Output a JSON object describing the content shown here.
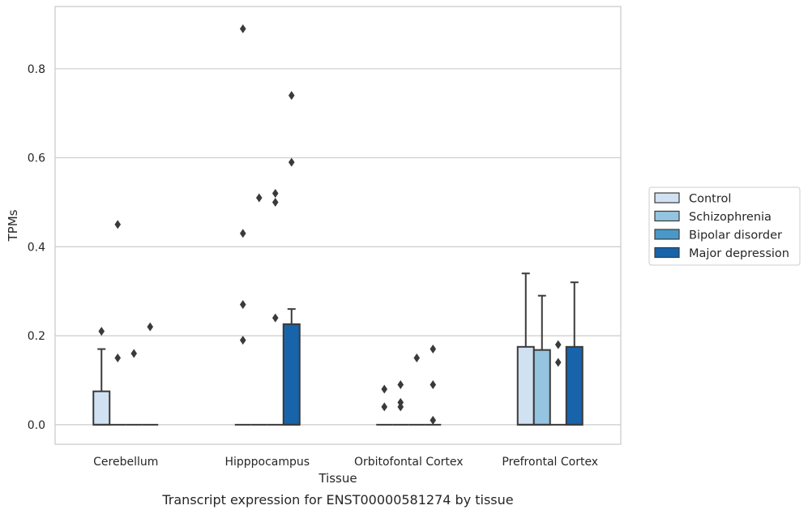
{
  "caption": "Transcript expression for ENST00000581274 by tissue",
  "chart_data": {
    "type": "box",
    "xlabel": "Tissue",
    "ylabel": "TPMs",
    "ylim": [
      -0.044,
      0.94
    ],
    "yticks": [
      0.0,
      0.2,
      0.4,
      0.6,
      0.8
    ],
    "ytick_labels": [
      "0.0",
      "0.2",
      "0.4",
      "0.6",
      "0.8"
    ],
    "grid": "horizontal",
    "legend_position": "right",
    "categories": [
      "Cerebellum",
      "Hipppocampus",
      "Orbitofontal Cortex",
      "Prefrontal Cortex"
    ],
    "series": [
      {
        "name": "Control",
        "color": "#d0e1f2",
        "boxes": [
          {
            "q1": 0.0,
            "median": 0.0,
            "q3": 0.075,
            "whisker_low": 0.0,
            "whisker_high": 0.17,
            "outliers": [
              0.21
            ]
          },
          {
            "q1": 0.0,
            "median": 0.0,
            "q3": 0.0,
            "whisker_low": 0.0,
            "whisker_high": 0.0,
            "outliers": [
              0.89,
              0.43,
              0.27,
              0.19
            ]
          },
          {
            "q1": 0.0,
            "median": 0.0,
            "q3": 0.0,
            "whisker_low": 0.0,
            "whisker_high": 0.0,
            "outliers": [
              0.08,
              0.04
            ]
          },
          {
            "q1": 0.0,
            "median": 0.0,
            "q3": 0.175,
            "whisker_low": 0.0,
            "whisker_high": 0.34,
            "outliers": []
          }
        ]
      },
      {
        "name": "Schizophrenia",
        "color": "#94c4df",
        "boxes": [
          {
            "q1": 0.0,
            "median": 0.0,
            "q3": 0.0,
            "whisker_low": 0.0,
            "whisker_high": 0.0,
            "outliers": [
              0.45,
              0.15
            ]
          },
          {
            "q1": 0.0,
            "median": 0.0,
            "q3": 0.0,
            "whisker_low": 0.0,
            "whisker_high": 0.0,
            "outliers": [
              0.51
            ]
          },
          {
            "q1": 0.0,
            "median": 0.0,
            "q3": 0.0,
            "whisker_low": 0.0,
            "whisker_high": 0.0,
            "outliers": [
              0.09,
              0.05,
              0.04
            ]
          },
          {
            "q1": 0.0,
            "median": 0.0,
            "q3": 0.168,
            "whisker_low": 0.0,
            "whisker_high": 0.29,
            "outliers": []
          }
        ]
      },
      {
        "name": "Bipolar disorder",
        "color": "#4a98c9",
        "boxes": [
          {
            "q1": 0.0,
            "median": 0.0,
            "q3": 0.0,
            "whisker_low": 0.0,
            "whisker_high": 0.0,
            "outliers": [
              0.16
            ]
          },
          {
            "q1": 0.0,
            "median": 0.0,
            "q3": 0.0,
            "whisker_low": 0.0,
            "whisker_high": 0.0,
            "outliers": [
              0.52,
              0.5,
              0.24
            ]
          },
          {
            "q1": 0.0,
            "median": 0.0,
            "q3": 0.0,
            "whisker_low": 0.0,
            "whisker_high": 0.0,
            "outliers": [
              0.15
            ]
          },
          {
            "q1": 0.0,
            "median": 0.0,
            "q3": 0.0,
            "whisker_low": 0.0,
            "whisker_high": 0.0,
            "outliers": [
              0.18,
              0.14
            ]
          }
        ]
      },
      {
        "name": "Major depression",
        "color": "#1764ab",
        "boxes": [
          {
            "q1": 0.0,
            "median": 0.0,
            "q3": 0.0,
            "whisker_low": 0.0,
            "whisker_high": 0.0,
            "outliers": [
              0.22
            ]
          },
          {
            "q1": 0.0,
            "median": 0.0,
            "q3": 0.226,
            "whisker_low": 0.0,
            "whisker_high": 0.26,
            "outliers": [
              0.74,
              0.59
            ]
          },
          {
            "q1": 0.0,
            "median": 0.0,
            "q3": 0.0,
            "whisker_low": 0.0,
            "whisker_high": 0.0,
            "outliers": [
              0.17,
              0.09,
              0.01
            ]
          },
          {
            "q1": 0.0,
            "median": 0.0,
            "q3": 0.175,
            "whisker_low": 0.0,
            "whisker_high": 0.32,
            "outliers": []
          }
        ]
      }
    ]
  }
}
